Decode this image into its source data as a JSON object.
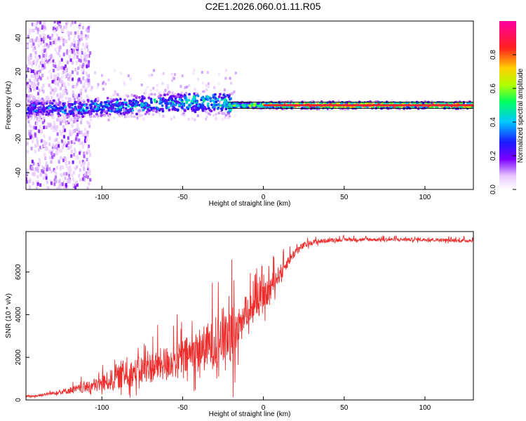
{
  "title": "C2E1.2026.060.01.11.R05",
  "colors": {
    "series": "#ee2d2d",
    "background": "#ffffff",
    "axis": "#000000"
  },
  "chart_data": [
    {
      "type": "heatmap",
      "title": "",
      "xlabel": "Height of straight line (km)",
      "ylabel": "Frequency (Hz)",
      "xlim": [
        -147,
        130
      ],
      "ylim": [
        -50,
        50
      ],
      "xticks": [
        -100,
        -50,
        0,
        50,
        100
      ],
      "yticks": [
        -40,
        -20,
        0,
        20,
        40
      ],
      "xtick_labels": [
        "-100",
        "-50",
        "0",
        "50",
        "100"
      ],
      "ytick_labels": [
        "-40",
        "-20",
        "0",
        "20",
        "40"
      ],
      "colorbar": {
        "label": "Normalized spectral amplitude",
        "range": [
          0,
          1
        ],
        "ticks": [
          0.0,
          0.2,
          0.4,
          0.6,
          0.8
        ],
        "tick_labels": [
          "0.0",
          "0.2",
          "0.4",
          "0.6",
          "0.8"
        ],
        "colormap": "rainbow (white-purple-blue-cyan-green-yellow-red-magenta)"
      },
      "description_series": {
        "ridge_center_hz": [
          {
            "x": -140,
            "y": -2
          },
          {
            "x": -120,
            "y": -2
          },
          {
            "x": -100,
            "y": -1
          },
          {
            "x": -80,
            "y": 0
          },
          {
            "x": -60,
            "y": 1
          },
          {
            "x": -40,
            "y": 2
          },
          {
            "x": -30,
            "y": 2
          },
          {
            "x": -20,
            "y": 0
          },
          {
            "x": 0,
            "y": 0
          },
          {
            "x": 50,
            "y": 0
          },
          {
            "x": 130,
            "y": 0
          }
        ],
        "ridge_amplitude": [
          {
            "x": -140,
            "y": 0.25
          },
          {
            "x": -100,
            "y": 0.3
          },
          {
            "x": -60,
            "y": 0.35
          },
          {
            "x": -30,
            "y": 0.45
          },
          {
            "x": -15,
            "y": 0.55
          },
          {
            "x": 0,
            "y": 0.6
          },
          {
            "x": 15,
            "y": 0.75
          },
          {
            "x": 30,
            "y": 0.85
          },
          {
            "x": 130,
            "y": 0.85
          }
        ]
      }
    },
    {
      "type": "line",
      "title": "",
      "xlabel": "Height of straight line (km)",
      "ylabel": "SNR (10 * v/v)",
      "xlim": [
        -147,
        130
      ],
      "ylim": [
        0,
        7900
      ],
      "xticks": [
        -100,
        -50,
        0,
        50,
        100
      ],
      "yticks": [
        0,
        2000,
        4000,
        6000
      ],
      "xtick_labels": [
        "-100",
        "-50",
        "0",
        "50",
        "100"
      ],
      "ytick_labels": [
        "0",
        "2000",
        "4000",
        "6000"
      ],
      "series": [
        {
          "name": "SNR",
          "x": [
            -147,
            -140,
            -135,
            -130,
            -120,
            -110,
            -100,
            -90,
            -80,
            -70,
            -60,
            -50,
            -40,
            -30,
            -25,
            -20,
            -17,
            -15,
            -10,
            -5,
            0,
            5,
            10,
            15,
            20,
            25,
            30,
            40,
            50,
            60,
            80,
            100,
            120,
            130
          ],
          "y": [
            150,
            180,
            250,
            300,
            400,
            500,
            650,
            900,
            1100,
            1300,
            1500,
            1700,
            2000,
            2300,
            2600,
            2700,
            3000,
            3400,
            4000,
            4300,
            4500,
            5200,
            5800,
            6400,
            6900,
            7200,
            7350,
            7450,
            7500,
            7500,
            7500,
            7500,
            7450,
            7450
          ],
          "noise": [
            40,
            60,
            80,
            100,
            200,
            300,
            500,
            700,
            800,
            900,
            1000,
            1100,
            1300,
            1500,
            1700,
            1800,
            1200,
            900,
            900,
            900,
            800,
            700,
            500,
            350,
            250,
            200,
            150,
            120,
            100,
            100,
            100,
            100,
            100,
            100
          ]
        }
      ]
    }
  ]
}
